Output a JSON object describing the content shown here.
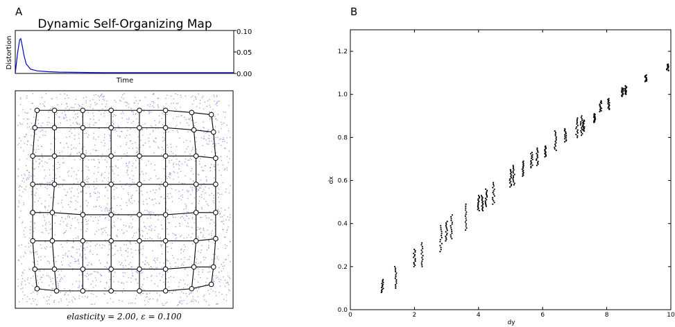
{
  "panels": {
    "a_label": "A",
    "b_label": "B"
  },
  "chart_data": [
    {
      "type": "line",
      "title": "Dynamic Self-Organizing Map",
      "xlabel": "Time",
      "ylabel": "Distortion",
      "ylim": [
        0,
        0.1
      ],
      "yticks": [
        "0.10",
        "0.05",
        "0.00"
      ],
      "series_color": "#0000cc",
      "x": [
        0,
        0.01,
        0.02,
        0.025,
        0.03,
        0.04,
        0.05,
        0.07,
        0.1,
        0.15,
        0.2,
        0.3,
        0.4,
        0.6,
        0.8,
        1.0
      ],
      "y": [
        0.0,
        0.045,
        0.078,
        0.081,
        0.07,
        0.042,
        0.022,
        0.01,
        0.006,
        0.004,
        0.003,
        0.0025,
        0.002,
        0.002,
        0.002,
        0.002
      ]
    },
    {
      "type": "scatter",
      "title": "",
      "caption": "elasticity = 2.00,  ε = 0.100",
      "sample_color": "#7777ee",
      "node_grid": {
        "rows": 8,
        "cols": 8,
        "description": "Self-organizing map nodes connected as grid"
      },
      "nodes": [
        [
          [
            0.1,
            0.09
          ],
          [
            0.18,
            0.09
          ],
          [
            0.31,
            0.09
          ],
          [
            0.44,
            0.09
          ],
          [
            0.57,
            0.09
          ],
          [
            0.69,
            0.09
          ],
          [
            0.81,
            0.1
          ],
          [
            0.9,
            0.11
          ]
        ],
        [
          [
            0.09,
            0.17
          ],
          [
            0.18,
            0.17
          ],
          [
            0.31,
            0.17
          ],
          [
            0.44,
            0.17
          ],
          [
            0.57,
            0.17
          ],
          [
            0.69,
            0.17
          ],
          [
            0.82,
            0.18
          ],
          [
            0.91,
            0.19
          ]
        ],
        [
          [
            0.08,
            0.3
          ],
          [
            0.18,
            0.3
          ],
          [
            0.31,
            0.3
          ],
          [
            0.44,
            0.3
          ],
          [
            0.57,
            0.3
          ],
          [
            0.69,
            0.3
          ],
          [
            0.83,
            0.3
          ],
          [
            0.92,
            0.31
          ]
        ],
        [
          [
            0.08,
            0.43
          ],
          [
            0.18,
            0.43
          ],
          [
            0.31,
            0.43
          ],
          [
            0.44,
            0.43
          ],
          [
            0.57,
            0.43
          ],
          [
            0.69,
            0.43
          ],
          [
            0.83,
            0.43
          ],
          [
            0.92,
            0.43
          ]
        ],
        [
          [
            0.08,
            0.56
          ],
          [
            0.17,
            0.56
          ],
          [
            0.31,
            0.57
          ],
          [
            0.44,
            0.57
          ],
          [
            0.57,
            0.57
          ],
          [
            0.69,
            0.57
          ],
          [
            0.83,
            0.56
          ],
          [
            0.92,
            0.56
          ]
        ],
        [
          [
            0.08,
            0.69
          ],
          [
            0.17,
            0.69
          ],
          [
            0.31,
            0.69
          ],
          [
            0.44,
            0.69
          ],
          [
            0.57,
            0.69
          ],
          [
            0.69,
            0.69
          ],
          [
            0.83,
            0.69
          ],
          [
            0.92,
            0.68
          ]
        ],
        [
          [
            0.09,
            0.82
          ],
          [
            0.18,
            0.82
          ],
          [
            0.31,
            0.82
          ],
          [
            0.44,
            0.82
          ],
          [
            0.57,
            0.82
          ],
          [
            0.69,
            0.82
          ],
          [
            0.82,
            0.81
          ],
          [
            0.91,
            0.81
          ]
        ],
        [
          [
            0.1,
            0.91
          ],
          [
            0.19,
            0.92
          ],
          [
            0.31,
            0.92
          ],
          [
            0.44,
            0.92
          ],
          [
            0.57,
            0.92
          ],
          [
            0.69,
            0.92
          ],
          [
            0.81,
            0.91
          ],
          [
            0.9,
            0.89
          ]
        ]
      ]
    },
    {
      "type": "scatter",
      "title": "",
      "xlabel": "dy",
      "ylabel": "dx",
      "xlim": [
        0,
        10
      ],
      "ylim": [
        0,
        1.3
      ],
      "xticks": [
        0,
        2,
        4,
        6,
        8,
        10
      ],
      "xtick_labels": [
        "0",
        "2",
        "4",
        "6",
        "8",
        "10"
      ],
      "yticks": [
        0.0,
        0.2,
        0.4,
        0.6,
        0.8,
        1.0,
        1.2
      ],
      "ytick_labels": [
        "0.0",
        "0.2",
        "0.4",
        "0.6",
        "0.8",
        "1.0",
        "1.2"
      ],
      "point_color": "#000000",
      "clusters": [
        {
          "x": 1.0,
          "ymin": 0.08,
          "ymax": 0.14
        },
        {
          "x": 1.41,
          "ymin": 0.1,
          "ymax": 0.2
        },
        {
          "x": 2.0,
          "ymin": 0.2,
          "ymax": 0.28
        },
        {
          "x": 2.24,
          "ymin": 0.2,
          "ymax": 0.31
        },
        {
          "x": 2.83,
          "ymin": 0.27,
          "ymax": 0.39
        },
        {
          "x": 3.0,
          "ymin": 0.32,
          "ymax": 0.41
        },
        {
          "x": 3.16,
          "ymin": 0.33,
          "ymax": 0.44
        },
        {
          "x": 3.61,
          "ymin": 0.37,
          "ymax": 0.49
        },
        {
          "x": 4.0,
          "ymin": 0.46,
          "ymax": 0.53
        },
        {
          "x": 4.12,
          "ymin": 0.46,
          "ymax": 0.53
        },
        {
          "x": 4.24,
          "ymin": 0.48,
          "ymax": 0.56
        },
        {
          "x": 4.47,
          "ymin": 0.49,
          "ymax": 0.59
        },
        {
          "x": 5.0,
          "ymin": 0.57,
          "ymax": 0.65
        },
        {
          "x": 5.1,
          "ymin": 0.58,
          "ymax": 0.67
        },
        {
          "x": 5.39,
          "ymin": 0.62,
          "ymax": 0.69
        },
        {
          "x": 5.66,
          "ymin": 0.66,
          "ymax": 0.73
        },
        {
          "x": 5.83,
          "ymin": 0.67,
          "ymax": 0.75
        },
        {
          "x": 6.08,
          "ymin": 0.71,
          "ymax": 0.76
        },
        {
          "x": 6.4,
          "ymin": 0.74,
          "ymax": 0.83
        },
        {
          "x": 6.71,
          "ymin": 0.78,
          "ymax": 0.84
        },
        {
          "x": 7.07,
          "ymin": 0.8,
          "ymax": 0.89
        },
        {
          "x": 7.21,
          "ymin": 0.81,
          "ymax": 0.9
        },
        {
          "x": 7.28,
          "ymin": 0.83,
          "ymax": 0.88
        },
        {
          "x": 7.62,
          "ymin": 0.87,
          "ymax": 0.91
        },
        {
          "x": 7.81,
          "ymin": 0.92,
          "ymax": 0.97
        },
        {
          "x": 8.06,
          "ymin": 0.93,
          "ymax": 0.98
        },
        {
          "x": 8.49,
          "ymin": 0.99,
          "ymax": 1.03
        },
        {
          "x": 8.6,
          "ymin": 1.0,
          "ymax": 1.04
        },
        {
          "x": 9.22,
          "ymin": 1.06,
          "ymax": 1.09
        },
        {
          "x": 9.9,
          "ymin": 1.11,
          "ymax": 1.14
        }
      ]
    }
  ]
}
